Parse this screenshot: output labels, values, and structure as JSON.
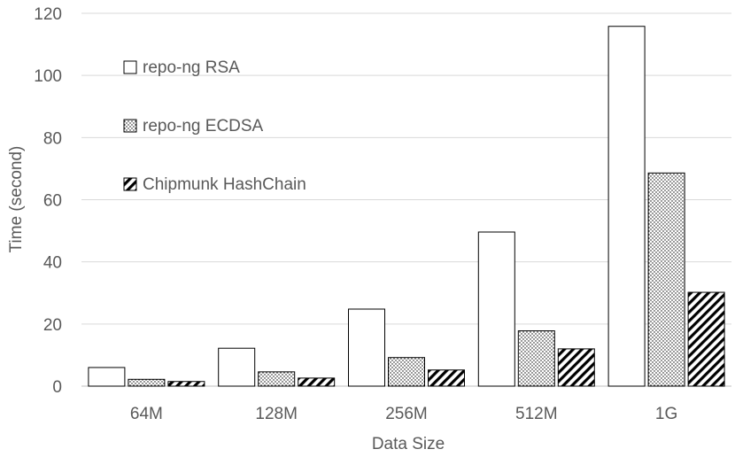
{
  "chart_data": {
    "type": "bar",
    "title": "",
    "xlabel": "Data Size",
    "ylabel": "Time (second)",
    "ylim": [
      0,
      120
    ],
    "yticks": [
      0,
      20,
      40,
      60,
      80,
      100,
      120
    ],
    "grid": "horizontal",
    "legend_placement": "top-left",
    "categories": [
      "64M",
      "128M",
      "256M",
      "512M",
      "1G"
    ],
    "series": [
      {
        "name": "repo-ng RSA",
        "values": [
          6,
          12.2,
          24.8,
          49.6,
          115.8
        ],
        "fill": "plain"
      },
      {
        "name": "repo-ng ECDSA",
        "values": [
          2.2,
          4.6,
          9.2,
          17.8,
          68.6
        ],
        "fill": "dots"
      },
      {
        "name": "Chipmunk HashChain",
        "values": [
          1.5,
          2.6,
          5.2,
          12,
          30.2
        ],
        "fill": "diagonal-hatch"
      }
    ],
    "colors": {
      "text": "#595959",
      "grid": "#d9d9d9",
      "bar_stroke": "#000000",
      "bar_fill": "#ffffff"
    }
  }
}
